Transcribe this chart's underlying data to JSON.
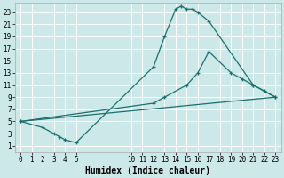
{
  "bg_color": "#cce8e8",
  "line_color": "#1a7070",
  "xlabel": "Humidex (Indice chaleur)",
  "xlim": [
    -0.5,
    23.5
  ],
  "ylim": [
    0,
    24.5
  ],
  "xticks": [
    0,
    1,
    2,
    3,
    4,
    5,
    10,
    11,
    12,
    13,
    14,
    15,
    16,
    17,
    18,
    19,
    20,
    21,
    22,
    23
  ],
  "yticks": [
    1,
    3,
    5,
    7,
    9,
    11,
    13,
    15,
    17,
    19,
    21,
    23
  ],
  "curve1_x": [
    0,
    2,
    3,
    3.5,
    4,
    5,
    12,
    13,
    14,
    14.5,
    15,
    15.5,
    16,
    17,
    21,
    22,
    23
  ],
  "curve1_y": [
    5,
    4,
    3,
    2.5,
    2,
    1.5,
    14,
    19,
    23.5,
    24,
    23.5,
    23.5,
    23,
    21.5,
    11,
    10,
    9
  ],
  "curve2_x": [
    0,
    12,
    13,
    15,
    16,
    17,
    19,
    20,
    21,
    23
  ],
  "curve2_y": [
    5,
    8,
    9,
    11,
    13,
    16.5,
    13,
    12,
    11,
    9
  ],
  "curve3_x": [
    0,
    23
  ],
  "curve3_y": [
    5,
    9
  ]
}
